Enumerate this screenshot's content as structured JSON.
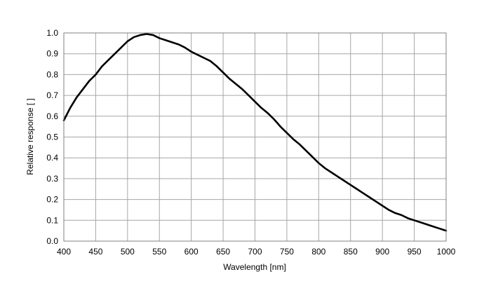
{
  "chart_data": {
    "type": "line",
    "title": "",
    "xlabel": "Wavelength [nm]",
    "ylabel": "Relative response [ ]",
    "xlim": [
      400,
      1000
    ],
    "ylim": [
      0,
      1.0
    ],
    "x_ticks": [
      "400",
      "450",
      "500",
      "550",
      "600",
      "650",
      "700",
      "750",
      "800",
      "850",
      "900",
      "950",
      "1000"
    ],
    "y_ticks": [
      "0.0",
      "0.1",
      "0.2",
      "0.3",
      "0.4",
      "0.5",
      "0.6",
      "0.7",
      "0.8",
      "0.9",
      "1.0"
    ],
    "grid": true,
    "legend": "none",
    "series": [
      {
        "color": "#000000",
        "x": [
          400,
          410,
          420,
          430,
          440,
          450,
          460,
          470,
          480,
          490,
          500,
          510,
          520,
          530,
          540,
          550,
          560,
          570,
          580,
          590,
          600,
          610,
          620,
          630,
          640,
          650,
          660,
          670,
          680,
          690,
          700,
          710,
          720,
          730,
          740,
          750,
          760,
          770,
          780,
          790,
          800,
          810,
          820,
          830,
          840,
          850,
          860,
          870,
          880,
          890,
          900,
          910,
          920,
          930,
          940,
          950,
          960,
          970,
          980,
          990,
          1000
        ],
        "y": [
          0.58,
          0.64,
          0.69,
          0.73,
          0.77,
          0.8,
          0.84,
          0.87,
          0.9,
          0.93,
          0.96,
          0.98,
          0.99,
          0.995,
          0.99,
          0.975,
          0.965,
          0.955,
          0.945,
          0.93,
          0.91,
          0.895,
          0.88,
          0.865,
          0.84,
          0.81,
          0.78,
          0.755,
          0.73,
          0.7,
          0.67,
          0.64,
          0.615,
          0.585,
          0.55,
          0.52,
          0.49,
          0.465,
          0.435,
          0.405,
          0.375,
          0.35,
          0.33,
          0.31,
          0.29,
          0.27,
          0.25,
          0.23,
          0.21,
          0.19,
          0.17,
          0.15,
          0.135,
          0.125,
          0.11,
          0.1,
          0.09,
          0.08,
          0.07,
          0.06,
          0.05
        ]
      }
    ]
  }
}
